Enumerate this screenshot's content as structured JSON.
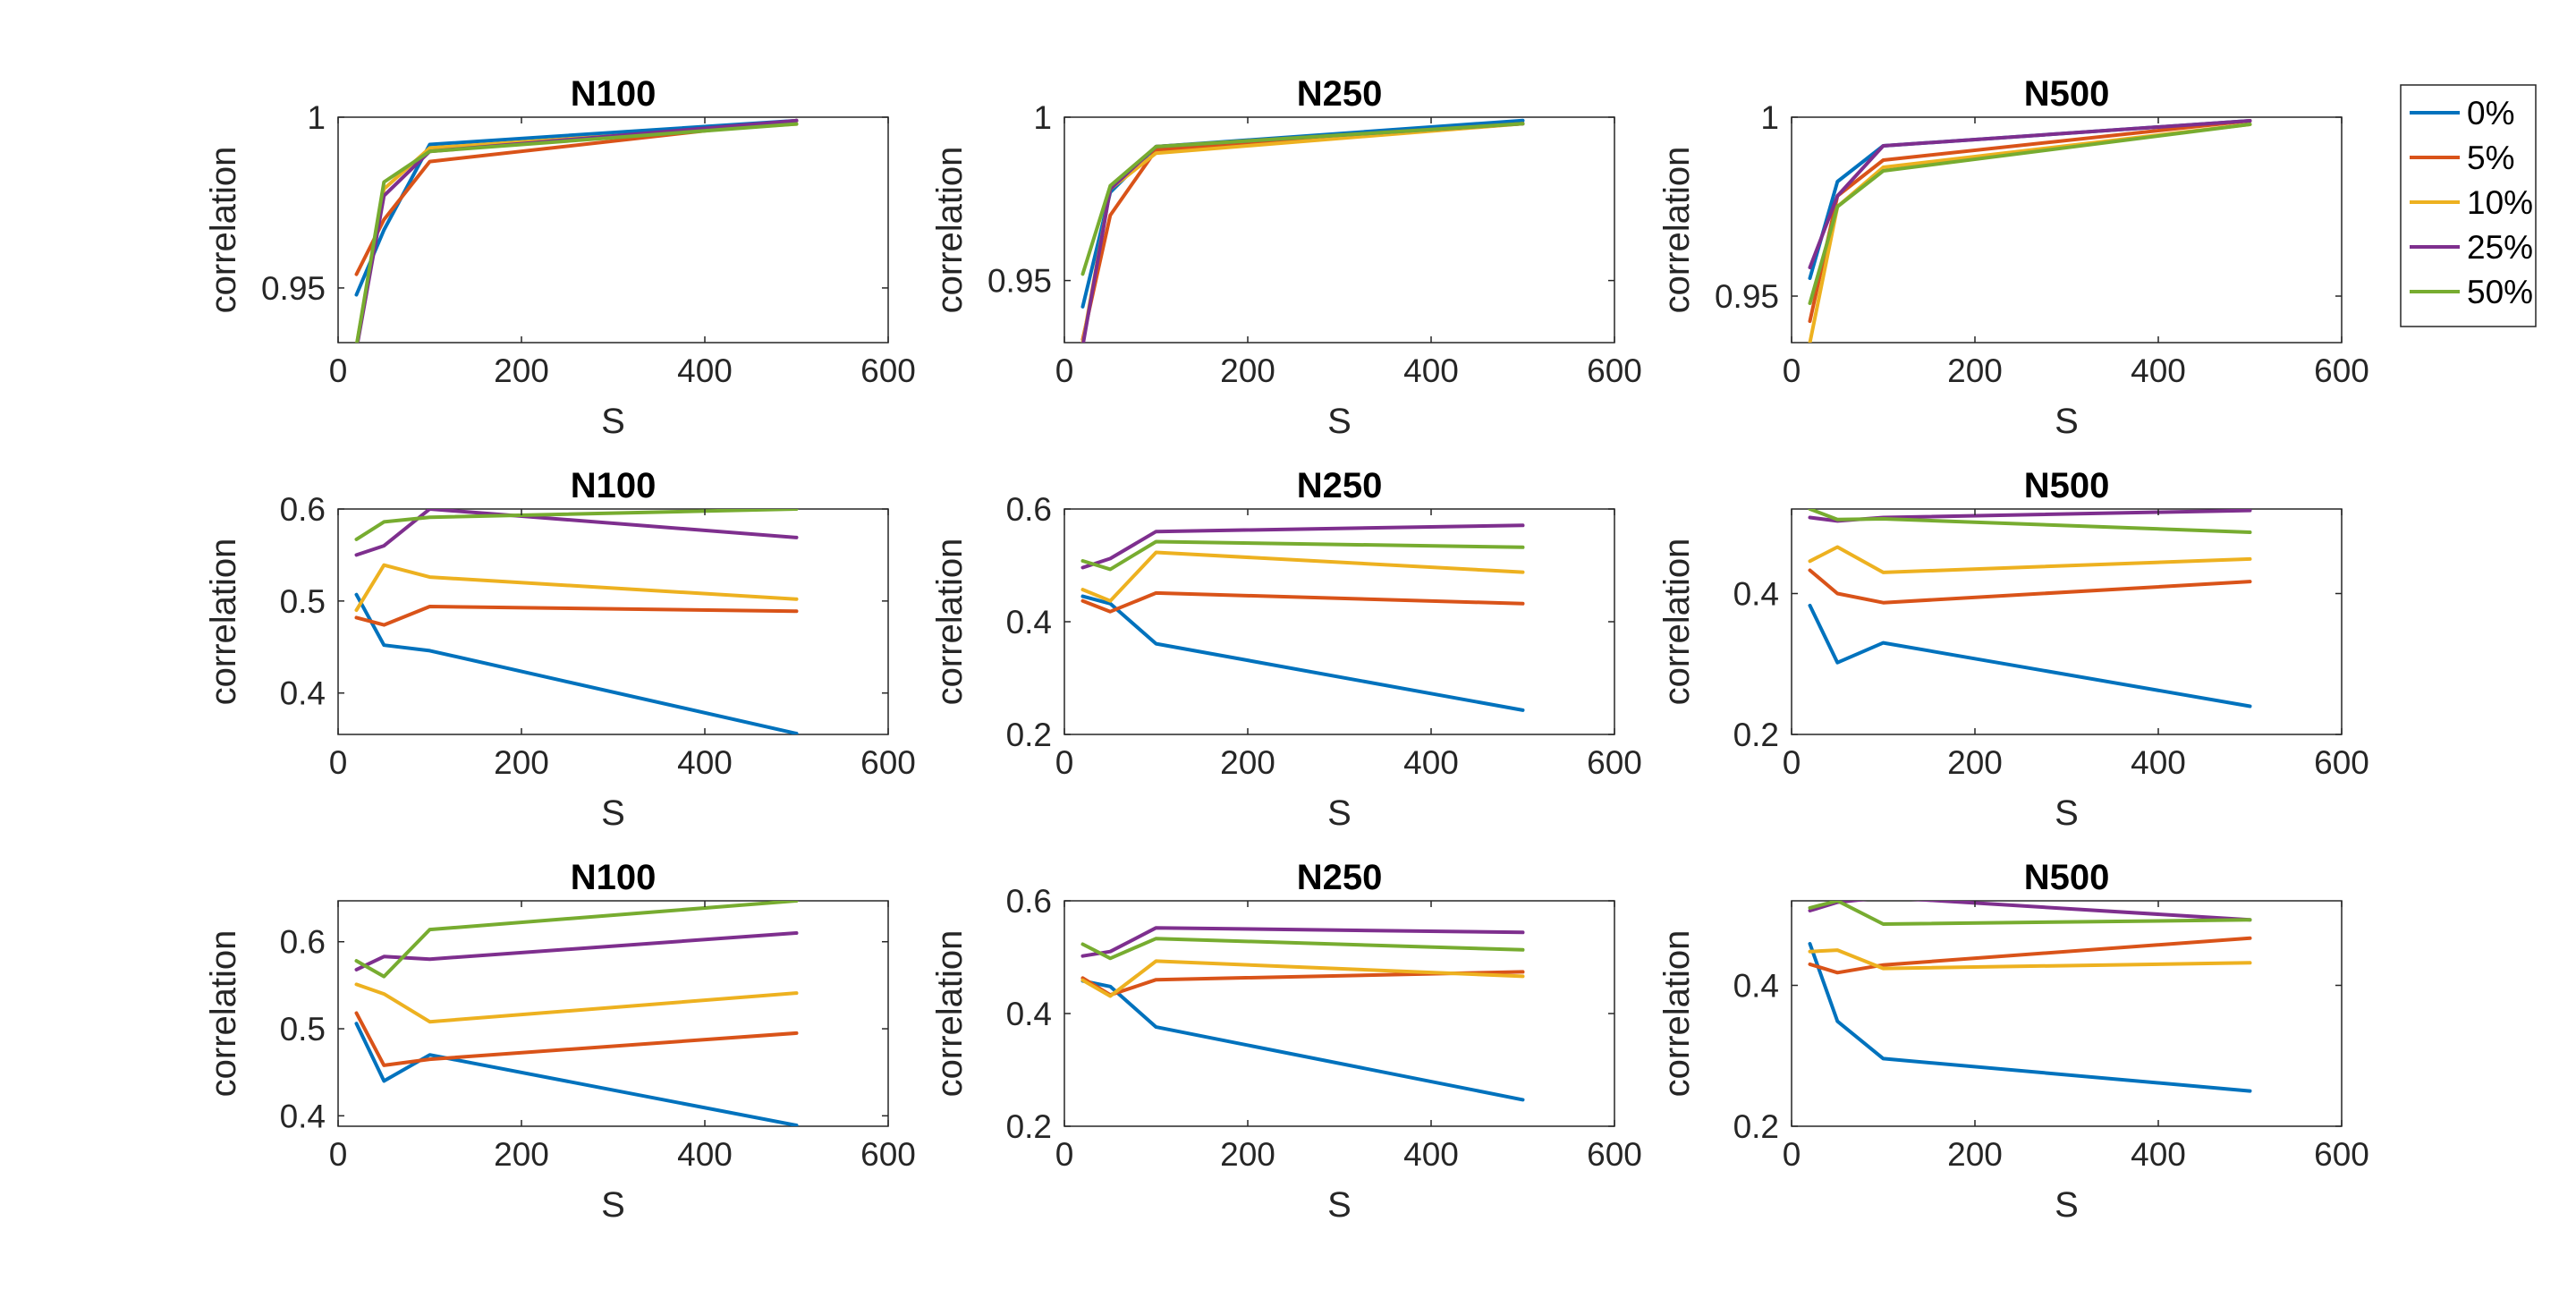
{
  "figure_type": "3x3 grid of line plots",
  "legend": {
    "entries": [
      {
        "label": "0%",
        "color": "#0072BD"
      },
      {
        "label": "5%",
        "color": "#D95319"
      },
      {
        "label": "10%",
        "color": "#EDB120"
      },
      {
        "label": "25%",
        "color": "#7E2F8E"
      },
      {
        "label": "50%",
        "color": "#77AC30"
      }
    ]
  },
  "chart_data": [
    {
      "type": "line",
      "title": "N100",
      "xlabel": "S",
      "ylabel": "correlation",
      "xlim": [
        0,
        600
      ],
      "ylim": [
        0.934,
        1.0
      ],
      "xticks": [
        0,
        200,
        400,
        600
      ],
      "xtick_labels": [
        "0",
        "200",
        "400",
        "600"
      ],
      "yticks": [
        0.95,
        1.0
      ],
      "ytick_labels": [
        "0.95",
        "1"
      ],
      "x": [
        20,
        50,
        100,
        500
      ],
      "series": [
        {
          "name": "0%",
          "values": [
            0.948,
            0.967,
            0.992,
            0.999
          ]
        },
        {
          "name": "5%",
          "values": [
            0.954,
            0.97,
            0.987,
            0.999
          ]
        },
        {
          "name": "10%",
          "values": [
            0.933,
            0.979,
            0.991,
            0.998
          ]
        },
        {
          "name": "25%",
          "values": [
            0.932,
            0.977,
            0.99,
            0.999
          ]
        },
        {
          "name": "50%",
          "values": [
            0.933,
            0.981,
            0.99,
            0.998
          ]
        }
      ]
    },
    {
      "type": "line",
      "title": "N250",
      "xlabel": "S",
      "ylabel": "correlation",
      "xlim": [
        0,
        600
      ],
      "ylim": [
        0.931,
        1.0
      ],
      "xticks": [
        0,
        200,
        400,
        600
      ],
      "xtick_labels": [
        "0",
        "200",
        "400",
        "600"
      ],
      "yticks": [
        0.95,
        1.0
      ],
      "ytick_labels": [
        "0.95",
        "1"
      ],
      "x": [
        20,
        50,
        100,
        500
      ],
      "series": [
        {
          "name": "0%",
          "values": [
            0.942,
            0.977,
            0.991,
            0.999
          ]
        },
        {
          "name": "5%",
          "values": [
            0.932,
            0.97,
            0.99,
            0.998
          ]
        },
        {
          "name": "10%",
          "values": [
            0.931,
            0.978,
            0.989,
            0.998
          ]
        },
        {
          "name": "25%",
          "values": [
            0.93,
            0.978,
            0.991,
            0.998
          ]
        },
        {
          "name": "50%",
          "values": [
            0.952,
            0.979,
            0.991,
            0.998
          ]
        }
      ]
    },
    {
      "type": "line",
      "title": "N500",
      "xlabel": "S",
      "ylabel": "correlation",
      "xlim": [
        0,
        600
      ],
      "ylim": [
        0.937,
        1.0
      ],
      "xticks": [
        0,
        200,
        400,
        600
      ],
      "xtick_labels": [
        "0",
        "200",
        "400",
        "600"
      ],
      "yticks": [
        0.95,
        1.0
      ],
      "ytick_labels": [
        "0.95",
        "1"
      ],
      "x": [
        20,
        50,
        100,
        500
      ],
      "series": [
        {
          "name": "0%",
          "values": [
            0.955,
            0.982,
            0.992,
            0.999
          ]
        },
        {
          "name": "5%",
          "values": [
            0.943,
            0.978,
            0.988,
            0.999
          ]
        },
        {
          "name": "10%",
          "values": [
            0.937,
            0.975,
            0.986,
            0.998
          ]
        },
        {
          "name": "25%",
          "values": [
            0.958,
            0.978,
            0.992,
            0.999
          ]
        },
        {
          "name": "50%",
          "values": [
            0.948,
            0.975,
            0.985,
            0.998
          ]
        }
      ]
    },
    {
      "type": "line",
      "title": "N100",
      "xlabel": "S",
      "ylabel": "correlation",
      "xlim": [
        0,
        600
      ],
      "ylim": [
        0.355,
        0.6
      ],
      "xticks": [
        0,
        200,
        400,
        600
      ],
      "xtick_labels": [
        "0",
        "200",
        "400",
        "600"
      ],
      "yticks": [
        0.4,
        0.5,
        0.6
      ],
      "ytick_labels": [
        "0.4",
        "0.5",
        "0.6"
      ],
      "x": [
        20,
        50,
        100,
        500
      ],
      "series": [
        {
          "name": "0%",
          "values": [
            0.507,
            0.452,
            0.446,
            0.356
          ]
        },
        {
          "name": "5%",
          "values": [
            0.482,
            0.474,
            0.494,
            0.489
          ]
        },
        {
          "name": "10%",
          "values": [
            0.49,
            0.539,
            0.526,
            0.502
          ]
        },
        {
          "name": "25%",
          "values": [
            0.55,
            0.56,
            0.6,
            0.569
          ]
        },
        {
          "name": "50%",
          "values": [
            0.567,
            0.586,
            0.591,
            0.6
          ]
        }
      ]
    },
    {
      "type": "line",
      "title": "N250",
      "xlabel": "S",
      "ylabel": "correlation",
      "xlim": [
        0,
        600
      ],
      "ylim": [
        0.2,
        0.6
      ],
      "xticks": [
        0,
        200,
        400,
        600
      ],
      "xtick_labels": [
        "0",
        "200",
        "400",
        "600"
      ],
      "yticks": [
        0.2,
        0.4,
        0.6
      ],
      "ytick_labels": [
        "0.2",
        "0.4",
        "0.6"
      ],
      "x": [
        20,
        50,
        100,
        500
      ],
      "series": [
        {
          "name": "0%",
          "values": [
            0.445,
            0.432,
            0.361,
            0.243
          ]
        },
        {
          "name": "5%",
          "values": [
            0.437,
            0.418,
            0.451,
            0.432
          ]
        },
        {
          "name": "10%",
          "values": [
            0.457,
            0.437,
            0.523,
            0.488
          ]
        },
        {
          "name": "25%",
          "values": [
            0.496,
            0.512,
            0.56,
            0.571
          ]
        },
        {
          "name": "50%",
          "values": [
            0.508,
            0.493,
            0.542,
            0.532
          ]
        }
      ]
    },
    {
      "type": "line",
      "title": "N500",
      "xlabel": "S",
      "ylabel": "correlation",
      "xlim": [
        0,
        600
      ],
      "ylim": [
        0.2,
        0.52
      ],
      "xticks": [
        0,
        200,
        400,
        600
      ],
      "xtick_labels": [
        "0",
        "200",
        "400",
        "600"
      ],
      "yticks": [
        0.2,
        0.4
      ],
      "ytick_labels": [
        "0.2",
        "0.4"
      ],
      "x": [
        20,
        50,
        100,
        500
      ],
      "series": [
        {
          "name": "0%",
          "values": [
            0.383,
            0.302,
            0.33,
            0.24
          ]
        },
        {
          "name": "5%",
          "values": [
            0.433,
            0.4,
            0.387,
            0.417
          ]
        },
        {
          "name": "10%",
          "values": [
            0.446,
            0.466,
            0.43,
            0.449
          ]
        },
        {
          "name": "25%",
          "values": [
            0.508,
            0.503,
            0.508,
            0.518
          ]
        },
        {
          "name": "50%",
          "values": [
            0.52,
            0.505,
            0.506,
            0.487
          ]
        }
      ]
    },
    {
      "type": "line",
      "title": "N100",
      "xlabel": "S",
      "ylabel": "correlation",
      "xlim": [
        0,
        600
      ],
      "ylim": [
        0.388,
        0.647
      ],
      "xticks": [
        0,
        200,
        400,
        600
      ],
      "xtick_labels": [
        "0",
        "200",
        "400",
        "600"
      ],
      "yticks": [
        0.4,
        0.5,
        0.6
      ],
      "ytick_labels": [
        "0.4",
        "0.5",
        "0.6"
      ],
      "x": [
        20,
        50,
        100,
        500
      ],
      "series": [
        {
          "name": "0%",
          "values": [
            0.506,
            0.44,
            0.47,
            0.389
          ]
        },
        {
          "name": "5%",
          "values": [
            0.518,
            0.458,
            0.465,
            0.495
          ]
        },
        {
          "name": "10%",
          "values": [
            0.551,
            0.54,
            0.508,
            0.541
          ]
        },
        {
          "name": "25%",
          "values": [
            0.568,
            0.583,
            0.58,
            0.61
          ]
        },
        {
          "name": "50%",
          "values": [
            0.578,
            0.56,
            0.614,
            0.647
          ]
        }
      ]
    },
    {
      "type": "line",
      "title": "N250",
      "xlabel": "S",
      "ylabel": "correlation",
      "xlim": [
        0,
        600
      ],
      "ylim": [
        0.2,
        0.6
      ],
      "xticks": [
        0,
        200,
        400,
        600
      ],
      "xtick_labels": [
        "0",
        "200",
        "400",
        "600"
      ],
      "yticks": [
        0.2,
        0.4,
        0.6
      ],
      "ytick_labels": [
        "0.2",
        "0.4",
        "0.6"
      ],
      "x": [
        20,
        50,
        100,
        500
      ],
      "series": [
        {
          "name": "0%",
          "values": [
            0.458,
            0.448,
            0.376,
            0.247
          ]
        },
        {
          "name": "5%",
          "values": [
            0.463,
            0.433,
            0.46,
            0.474
          ]
        },
        {
          "name": "10%",
          "values": [
            0.459,
            0.431,
            0.493,
            0.466
          ]
        },
        {
          "name": "25%",
          "values": [
            0.502,
            0.51,
            0.552,
            0.544
          ]
        },
        {
          "name": "50%",
          "values": [
            0.523,
            0.498,
            0.533,
            0.513
          ]
        }
      ]
    },
    {
      "type": "line",
      "title": "N500",
      "xlabel": "S",
      "ylabel": "correlation",
      "xlim": [
        0,
        600
      ],
      "ylim": [
        0.2,
        0.52
      ],
      "xticks": [
        0,
        200,
        400,
        600
      ],
      "xtick_labels": [
        "0",
        "200",
        "400",
        "600"
      ],
      "yticks": [
        0.2,
        0.4
      ],
      "ytick_labels": [
        "0.2",
        "0.4"
      ],
      "x": [
        20,
        50,
        100,
        500
      ],
      "series": [
        {
          "name": "0%",
          "values": [
            0.459,
            0.349,
            0.296,
            0.25
          ]
        },
        {
          "name": "5%",
          "values": [
            0.43,
            0.418,
            0.429,
            0.467
          ]
        },
        {
          "name": "10%",
          "values": [
            0.448,
            0.45,
            0.424,
            0.432
          ]
        },
        {
          "name": "25%",
          "values": [
            0.506,
            0.518,
            0.525,
            0.493
          ]
        },
        {
          "name": "50%",
          "values": [
            0.51,
            0.52,
            0.487,
            0.493
          ]
        }
      ]
    }
  ]
}
